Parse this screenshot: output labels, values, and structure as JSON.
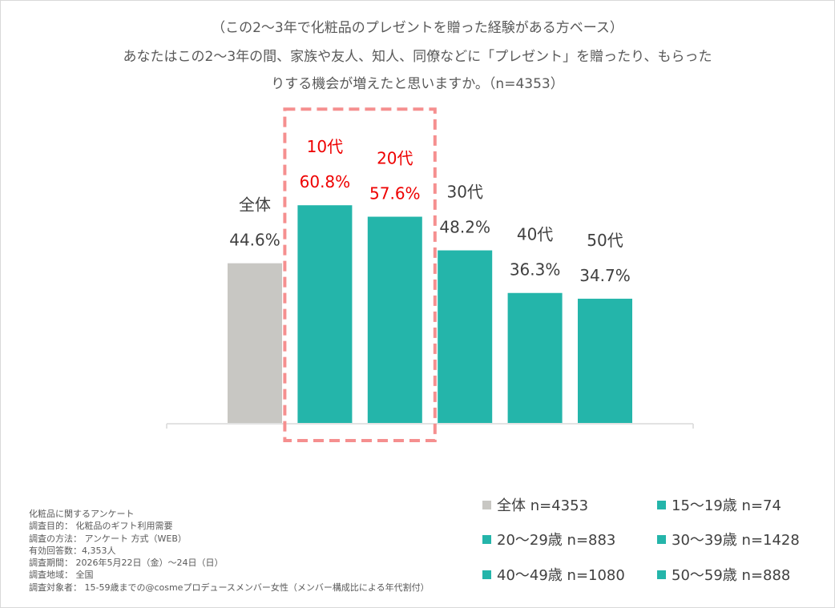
{
  "title_lines": [
    "（この2～3年で化粧品のプレゼントを贈った経験がある方ベース）",
    "あなたはこの2～3年の間、家族や友人、知人、同僚などに「プレゼント」を贈ったり、もらった",
    "りする機会が増えたと思いますか。（n=4353）"
  ],
  "chart_data": {
    "type": "bar",
    "categories": [
      "全体",
      "10代",
      "20代",
      "30代",
      "40代",
      "50代"
    ],
    "values": [
      44.6,
      60.8,
      57.6,
      48.2,
      36.3,
      34.7
    ],
    "value_labels": [
      "44.6%",
      "60.8%",
      "57.6%",
      "48.2%",
      "36.3%",
      "34.7%"
    ],
    "ylim": [
      0,
      100
    ],
    "bar_colors": [
      "#c8c7c3",
      "#24b5aa",
      "#24b5aa",
      "#24b5aa",
      "#24b5aa",
      "#24b5aa"
    ],
    "highlight": {
      "categories": [
        "10代",
        "20代"
      ],
      "label_color": "#ee0000",
      "box_color": "#f58f8f"
    },
    "grid": false,
    "legend_placement": "bottom-right"
  },
  "legend": [
    {
      "label": "全体 n=4353",
      "color": "#c8c7c3"
    },
    {
      "label": "15～19歳 n=74",
      "color": "#24b5aa"
    },
    {
      "label": "20～29歳 n=883",
      "color": "#24b5aa"
    },
    {
      "label": "30～39歳 n=1428",
      "color": "#24b5aa"
    },
    {
      "label": "40～49歳 n=1080",
      "color": "#24b5aa"
    },
    {
      "label": "50～59歳 n=888",
      "color": "#24b5aa"
    }
  ],
  "notes": [
    "化粧品に関するアンケート",
    "調査目的： 化粧品のギフト利用需要",
    "調査の方法： アンケート 方式（WEB）",
    "有効回答数：4,353人",
    "調査期間： 2026年5月22日（金）～24日（日）",
    "調査地域： 全国",
    "調査対象者： 15-59歳までの@cosmeプロデュースメンバー女性（メンバー構成比による年代割付）"
  ],
  "colors": {
    "text": "#404040",
    "title": "#595959",
    "axis": "#d9d9d9"
  }
}
